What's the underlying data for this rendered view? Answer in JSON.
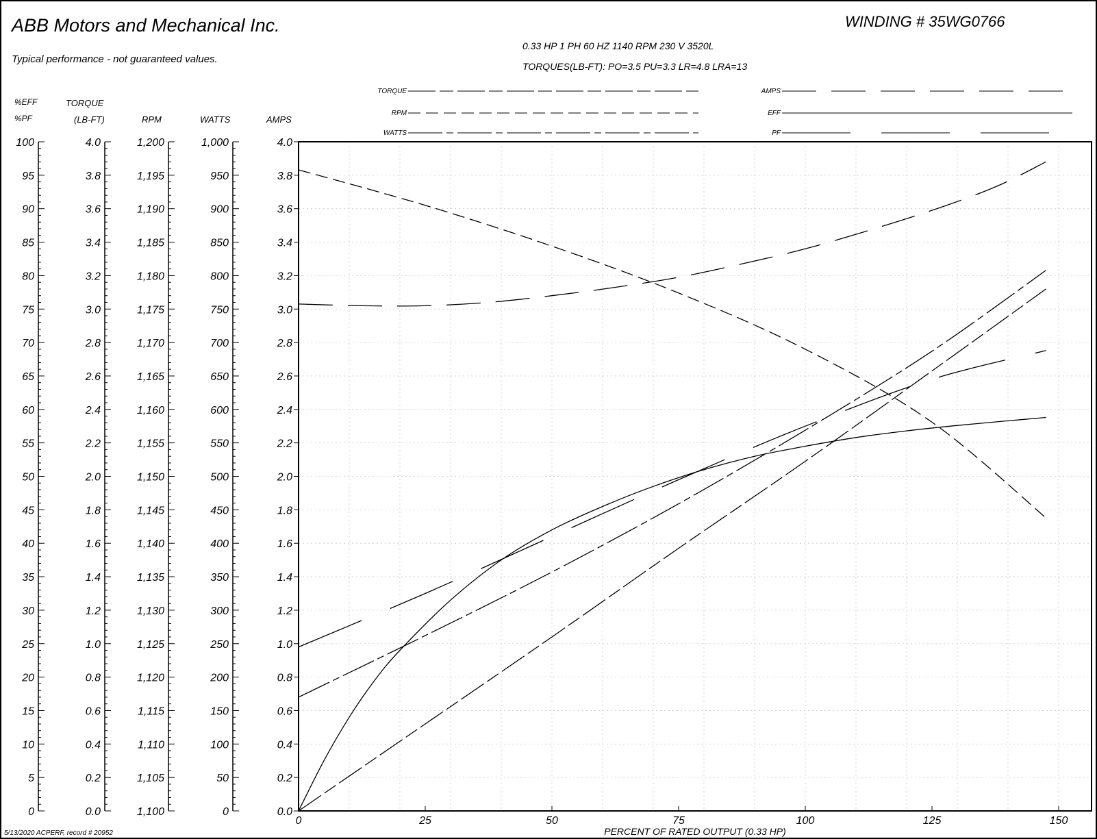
{
  "header": {
    "company": "ABB Motors and Mechanical Inc.",
    "disclaimer": "Typical performance - not guaranteed values.",
    "winding": "WINDING # 35WG0766",
    "rating": "0.33 HP  1 PH  60 HZ  1140 RPM  230 V  3520L",
    "torques": "TORQUES(LB-FT): PO=3.5  PU=3.3  LR=4.8  LRA=13"
  },
  "legend": [
    {
      "label": "TORQUE",
      "dash": "40 6 20 6"
    },
    {
      "label": "RPM",
      "dash": "18 8"
    },
    {
      "label": "WATTS",
      "dash": "50 6 10 6"
    },
    {
      "label": "AMPS",
      "dash": "50 22"
    },
    {
      "label": "EFF",
      "dash": ""
    },
    {
      "label": "PF",
      "dash": "100 45"
    }
  ],
  "axes": {
    "headers": {
      "eff": "%EFF",
      "pf": "%PF",
      "torque": "TORQUE",
      "torque_unit": "(LB-FT)",
      "rpm": "RPM",
      "watts": "WATTS",
      "amps": "AMPS"
    },
    "eff_ticks": [
      "0",
      "5",
      "10",
      "15",
      "20",
      "25",
      "30",
      "35",
      "40",
      "45",
      "50",
      "55",
      "60",
      "65",
      "70",
      "75",
      "80",
      "85",
      "90",
      "95",
      "100"
    ],
    "torque_ticks": [
      "0.0",
      "0.2",
      "0.4",
      "0.6",
      "0.8",
      "1.0",
      "1.2",
      "1.4",
      "1.6",
      "1.8",
      "2.0",
      "2.2",
      "2.4",
      "2.6",
      "2.8",
      "3.0",
      "3.2",
      "3.4",
      "3.6",
      "3.8",
      "4.0"
    ],
    "rpm_ticks": [
      "1,100",
      "1,105",
      "1,110",
      "1,115",
      "1,120",
      "1,125",
      "1,130",
      "1,135",
      "1,140",
      "1,145",
      "1,150",
      "1,155",
      "1,160",
      "1,165",
      "1,170",
      "1,175",
      "1,180",
      "1,185",
      "1,190",
      "1,195",
      "1,200"
    ],
    "watts_ticks": [
      "0",
      "50",
      "100",
      "150",
      "200",
      "250",
      "300",
      "350",
      "400",
      "450",
      "500",
      "550",
      "600",
      "650",
      "700",
      "750",
      "800",
      "850",
      "900",
      "950",
      "1,000"
    ],
    "amps_ticks": [
      "0.0",
      "0.2",
      "0.4",
      "0.6",
      "0.8",
      "1.0",
      "1.2",
      "1.4",
      "1.6",
      "1.8",
      "2.0",
      "2.2",
      "2.4",
      "2.6",
      "2.8",
      "3.0",
      "3.2",
      "3.4",
      "3.6",
      "3.8",
      "4.0"
    ],
    "x_ticks": [
      "0",
      "25",
      "50",
      "75",
      "100",
      "125",
      "150"
    ],
    "xlabel": "PERCENT OF RATED OUTPUT (0.33 HP)"
  },
  "footer": {
    "record": "5/13/2020 ACPERF, record # 20952"
  },
  "chart_data": {
    "type": "line",
    "title": "WINDING # 35WG0766",
    "xlabel": "PERCENT OF RATED OUTPUT (0.33 HP)",
    "xlim": [
      0,
      155
    ],
    "grid": true,
    "series": [
      {
        "name": "TORQUE",
        "axis": "torque",
        "ylim": [
          0,
          4.0
        ],
        "dash": "40 6 20 6",
        "x": [
          0,
          25,
          50,
          75,
          100,
          125,
          147.5
        ],
        "y": [
          0.0,
          0.52,
          1.04,
          1.57,
          2.09,
          2.63,
          3.12
        ]
      },
      {
        "name": "RPM",
        "axis": "rpm",
        "ylim": [
          1100,
          1200
        ],
        "dash": "18 8",
        "x": [
          0,
          25,
          50,
          75,
          100,
          125,
          147.5
        ],
        "y": [
          1195.8,
          1190.5,
          1184.4,
          1177.4,
          1169.0,
          1158.1,
          1143.8
        ]
      },
      {
        "name": "WATTS",
        "axis": "watts",
        "ylim": [
          0,
          1000
        ],
        "dash": "50 6 10 6",
        "x": [
          0,
          25,
          50,
          75,
          100,
          125,
          147.5
        ],
        "y": [
          170,
          262,
          357,
          459,
          569,
          687,
          808
        ]
      },
      {
        "name": "AMPS",
        "axis": "amps",
        "ylim": [
          0,
          4.0
        ],
        "dash": "50 22",
        "x": [
          0,
          12.5,
          25,
          37.5,
          50,
          62.5,
          75,
          87.5,
          100,
          112.5,
          125,
          137.5,
          147.5
        ],
        "y": [
          3.03,
          3.02,
          3.02,
          3.04,
          3.08,
          3.13,
          3.19,
          3.27,
          3.36,
          3.47,
          3.59,
          3.73,
          3.88
        ]
      },
      {
        "name": "EFF",
        "axis": "eff",
        "ylim": [
          0,
          100
        ],
        "dash": "",
        "x": [
          0,
          5,
          10,
          15,
          20,
          30,
          40,
          50,
          60,
          70,
          80,
          90,
          100,
          110,
          120,
          130,
          140,
          147.5
        ],
        "y": [
          0,
          7.5,
          14.0,
          19.5,
          24.0,
          31.5,
          37.5,
          42.0,
          45.5,
          48.5,
          51.0,
          53.0,
          54.5,
          55.8,
          56.8,
          57.6,
          58.3,
          58.8
        ]
      },
      {
        "name": "PF",
        "axis": "pf",
        "ylim": [
          0,
          100
        ],
        "dash": "100 45",
        "x": [
          0,
          25,
          50,
          75,
          100,
          125,
          147.5
        ],
        "y": [
          24.5,
          32.5,
          41.0,
          49.5,
          57.5,
          64.5,
          68.8
        ]
      }
    ]
  }
}
